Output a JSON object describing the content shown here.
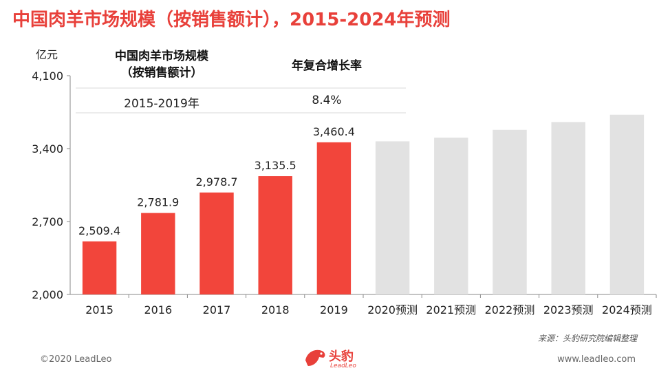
{
  "header": {
    "title": "中国肉羊市场规模（按销售额计），2015-2024年预测"
  },
  "unit_label": "亿元",
  "cagr_table": {
    "col1_header_line1": "中国肉羊市场规模",
    "col1_header_line2": "（按销售额计）",
    "col2_header": "年复合增长率",
    "period": "2015-2019年",
    "rate": "8.4%"
  },
  "chart_data": {
    "type": "bar",
    "categories": [
      "2015",
      "2016",
      "2017",
      "2018",
      "2019",
      "2020预测",
      "2021预测",
      "2022预测",
      "2023预测",
      "2024预测"
    ],
    "values": [
      2509.4,
      2781.9,
      2978.7,
      3135.5,
      3460.4,
      3470,
      3505,
      3580,
      3655,
      3725
    ],
    "data_labels": [
      "2,509.4",
      "2,781.9",
      "2,978.7",
      "3,135.5",
      "3,460.4",
      "",
      "",
      "",
      "",
      ""
    ],
    "forecast_from_index": 5,
    "ylim": [
      2000,
      4100
    ],
    "yticks": [
      2000,
      2700,
      3400,
      4100
    ],
    "ytick_labels": [
      "2,000",
      "2,700",
      "3,400",
      "4,100"
    ],
    "colors": {
      "actual": "#f2453b",
      "forecast": "#e2e2e2"
    },
    "grid": false
  },
  "footer": {
    "source": "来源：头豹研究院编辑整理",
    "copyright": "©2020 LeadLeo",
    "website": "www.leadleo.com",
    "logo_text": "头豹",
    "logo_sub": "LeadLeo"
  }
}
